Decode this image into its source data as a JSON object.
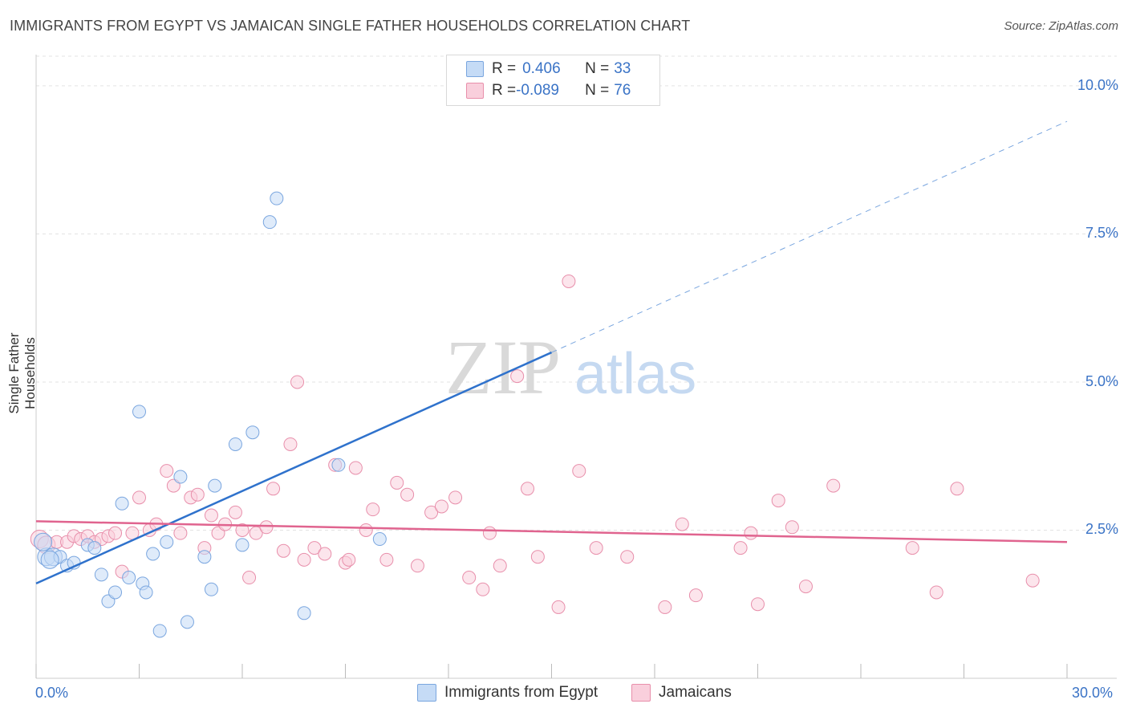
{
  "title": "IMMIGRANTS FROM EGYPT VS JAMAICAN SINGLE FATHER HOUSEHOLDS CORRELATION CHART",
  "source": "Source: ZipAtlas.com",
  "watermark": {
    "zip": "ZIP",
    "atlas": "atlas"
  },
  "legend": {
    "rows": [
      {
        "r_label": "R = ",
        "r_value": "0.406",
        "n_label": "N = ",
        "n_value": "33",
        "color": "#a8c8f0",
        "border": "#7aa6df"
      },
      {
        "r_label": "R = ",
        "r_value": "-0.089",
        "n_label": "N = ",
        "n_value": "76",
        "color": "#f7bfd0",
        "border": "#e88fab"
      }
    ]
  },
  "bottom_legend": [
    {
      "label": "Immigrants from Egypt",
      "color": "#c5dbf6",
      "border": "#7aa6df"
    },
    {
      "label": "Jamaicans",
      "color": "#f9cfdc",
      "border": "#e88fab"
    }
  ],
  "chart_data": {
    "type": "scatter",
    "title": "IMMIGRANTS FROM EGYPT VS JAMAICAN SINGLE FATHER HOUSEHOLDS CORRELATION CHART",
    "xlabel": "",
    "ylabel": "Single Father Households",
    "xlim": [
      0,
      30
    ],
    "ylim": [
      0,
      10.5
    ],
    "x_tick_labels": [
      "0.0%",
      "30.0%"
    ],
    "y_ticks": [
      2.5,
      5.0,
      7.5,
      10.0
    ],
    "y_tick_labels": [
      "2.5%",
      "5.0%",
      "7.5%",
      "10.0%"
    ],
    "grid": "horizontal dashed",
    "series": [
      {
        "name": "Immigrants from Egypt",
        "color": "#7aa6df",
        "fill": "#c5dbf6",
        "trend": {
          "x": [
            0,
            15
          ],
          "y": [
            1.6,
            5.5
          ],
          "extended_to": [
            30,
            9.4
          ],
          "color": "#2f72cc"
        },
        "points": [
          [
            0.3,
            2.05
          ],
          [
            0.5,
            2.05
          ],
          [
            0.7,
            2.05
          ],
          [
            0.9,
            1.9
          ],
          [
            1.1,
            1.95
          ],
          [
            1.5,
            2.25
          ],
          [
            1.7,
            2.2
          ],
          [
            1.9,
            1.75
          ],
          [
            2.1,
            1.3
          ],
          [
            2.3,
            1.45
          ],
          [
            2.5,
            2.95
          ],
          [
            2.7,
            1.7
          ],
          [
            3.0,
            4.5
          ],
          [
            3.1,
            1.6
          ],
          [
            3.2,
            1.45
          ],
          [
            3.4,
            2.1
          ],
          [
            3.6,
            0.8
          ],
          [
            3.8,
            2.3
          ],
          [
            4.2,
            3.4
          ],
          [
            4.4,
            0.95
          ],
          [
            4.9,
            2.05
          ],
          [
            5.1,
            1.5
          ],
          [
            5.2,
            3.25
          ],
          [
            5.8,
            3.95
          ],
          [
            6.0,
            2.25
          ],
          [
            6.3,
            4.15
          ],
          [
            6.8,
            7.7
          ],
          [
            7.0,
            8.1
          ],
          [
            7.8,
            1.1
          ],
          [
            8.8,
            3.6
          ],
          [
            10.0,
            2.35
          ],
          [
            0.2,
            2.3
          ],
          [
            0.4,
            2.0
          ]
        ]
      },
      {
        "name": "Jamaicans",
        "color": "#e88fab",
        "fill": "#f9cfdc",
        "trend": {
          "x": [
            0,
            30
          ],
          "y": [
            2.65,
            2.3
          ],
          "color": "#e0648f"
        },
        "points": [
          [
            0.1,
            2.35
          ],
          [
            0.3,
            2.25
          ],
          [
            0.6,
            2.3
          ],
          [
            0.9,
            2.3
          ],
          [
            1.1,
            2.4
          ],
          [
            1.3,
            2.35
          ],
          [
            1.5,
            2.4
          ],
          [
            1.7,
            2.3
          ],
          [
            1.9,
            2.35
          ],
          [
            2.1,
            2.4
          ],
          [
            2.3,
            2.45
          ],
          [
            2.5,
            1.8
          ],
          [
            2.8,
            2.45
          ],
          [
            3.0,
            3.05
          ],
          [
            3.3,
            2.5
          ],
          [
            3.5,
            2.6
          ],
          [
            3.8,
            3.5
          ],
          [
            4.0,
            3.25
          ],
          [
            4.2,
            2.45
          ],
          [
            4.5,
            3.05
          ],
          [
            4.7,
            3.1
          ],
          [
            4.9,
            2.2
          ],
          [
            5.1,
            2.75
          ],
          [
            5.3,
            2.45
          ],
          [
            5.5,
            2.6
          ],
          [
            5.8,
            2.8
          ],
          [
            6.0,
            2.5
          ],
          [
            6.2,
            1.7
          ],
          [
            6.4,
            2.45
          ],
          [
            6.7,
            2.55
          ],
          [
            6.9,
            3.2
          ],
          [
            7.2,
            2.15
          ],
          [
            7.4,
            3.95
          ],
          [
            7.6,
            5.0
          ],
          [
            7.8,
            2.0
          ],
          [
            8.1,
            2.2
          ],
          [
            8.4,
            2.1
          ],
          [
            8.7,
            3.6
          ],
          [
            9.0,
            1.95
          ],
          [
            9.3,
            3.55
          ],
          [
            9.6,
            2.5
          ],
          [
            9.8,
            2.85
          ],
          [
            10.2,
            2.0
          ],
          [
            10.5,
            3.3
          ],
          [
            10.8,
            3.1
          ],
          [
            11.1,
            1.9
          ],
          [
            11.5,
            2.8
          ],
          [
            11.8,
            2.9
          ],
          [
            12.2,
            3.05
          ],
          [
            12.6,
            1.7
          ],
          [
            13.0,
            1.5
          ],
          [
            13.5,
            1.9
          ],
          [
            14.0,
            5.1
          ],
          [
            14.3,
            3.2
          ],
          [
            14.6,
            2.05
          ],
          [
            15.2,
            1.2
          ],
          [
            15.5,
            6.7
          ],
          [
            15.8,
            3.5
          ],
          [
            16.3,
            2.2
          ],
          [
            17.2,
            2.05
          ],
          [
            18.3,
            1.2
          ],
          [
            18.8,
            2.6
          ],
          [
            19.2,
            1.4
          ],
          [
            20.5,
            2.2
          ],
          [
            21.0,
            1.25
          ],
          [
            21.6,
            3.0
          ],
          [
            22.0,
            2.55
          ],
          [
            22.4,
            1.55
          ],
          [
            23.2,
            3.25
          ],
          [
            25.5,
            2.2
          ],
          [
            26.2,
            1.45
          ],
          [
            26.8,
            3.2
          ],
          [
            29.0,
            1.65
          ],
          [
            20.8,
            2.45
          ],
          [
            9.1,
            2.0
          ],
          [
            13.2,
            2.45
          ]
        ]
      }
    ],
    "legend_placement": "top-center"
  }
}
